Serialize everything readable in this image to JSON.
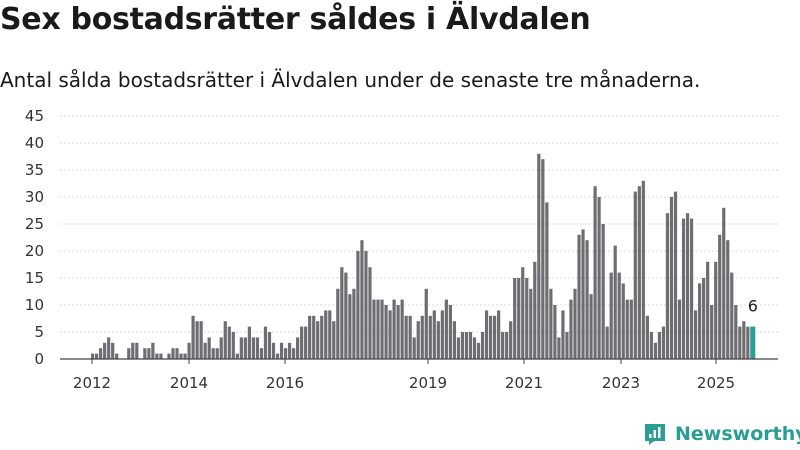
{
  "header": {
    "title": "Sex bostadsrätter såldes i Älvdalen",
    "subtitle": "Antal sålda bostadsrätter i Älvdalen under de senaste tre månaderna."
  },
  "brand": {
    "name": "Newsworthy",
    "icon": "newsworthy-logo-icon",
    "color": "#2a9d94"
  },
  "chart_data": {
    "type": "bar",
    "title": "",
    "xlabel": "",
    "ylabel": "",
    "ylim": [
      0,
      45
    ],
    "yticks": [
      0,
      5,
      10,
      15,
      20,
      25,
      30,
      35,
      40,
      45
    ],
    "xticks": [
      "2012",
      "2014",
      "2016",
      "2019",
      "2021",
      "2023",
      "2025"
    ],
    "grid": true,
    "colors": {
      "bar": "#6e6d72",
      "highlight": "#2a9d94"
    },
    "annotation": {
      "text": "6",
      "target": "last bar"
    },
    "values": [
      1,
      1,
      2,
      3,
      4,
      3,
      1,
      0,
      0,
      2,
      3,
      3,
      0,
      2,
      2,
      3,
      1,
      1,
      0,
      1,
      2,
      2,
      1,
      1,
      3,
      8,
      7,
      7,
      3,
      4,
      2,
      2,
      4,
      7,
      6,
      5,
      1,
      4,
      4,
      6,
      4,
      4,
      2,
      6,
      5,
      3,
      1,
      3,
      2,
      3,
      2,
      4,
      6,
      6,
      8,
      8,
      7,
      8,
      9,
      9,
      7,
      13,
      17,
      16,
      12,
      13,
      20,
      22,
      20,
      17,
      11,
      11,
      11,
      10,
      9,
      11,
      10,
      11,
      8,
      8,
      4,
      7,
      8,
      13,
      8,
      9,
      7,
      9,
      11,
      10,
      7,
      4,
      5,
      5,
      5,
      4,
      3,
      5,
      9,
      8,
      8,
      9,
      5,
      5,
      7,
      15,
      15,
      17,
      15,
      13,
      18,
      38,
      37,
      29,
      13,
      10,
      4,
      9,
      5,
      11,
      13,
      23,
      24,
      22,
      12,
      32,
      30,
      25,
      6,
      16,
      21,
      16,
      14,
      11,
      11,
      31,
      32,
      33,
      8,
      5,
      3,
      5,
      6,
      27,
      30,
      31,
      11,
      26,
      27,
      26,
      9,
      14,
      15,
      18,
      10,
      18,
      23,
      28,
      22,
      16,
      10,
      6,
      7,
      6,
      6
    ]
  }
}
